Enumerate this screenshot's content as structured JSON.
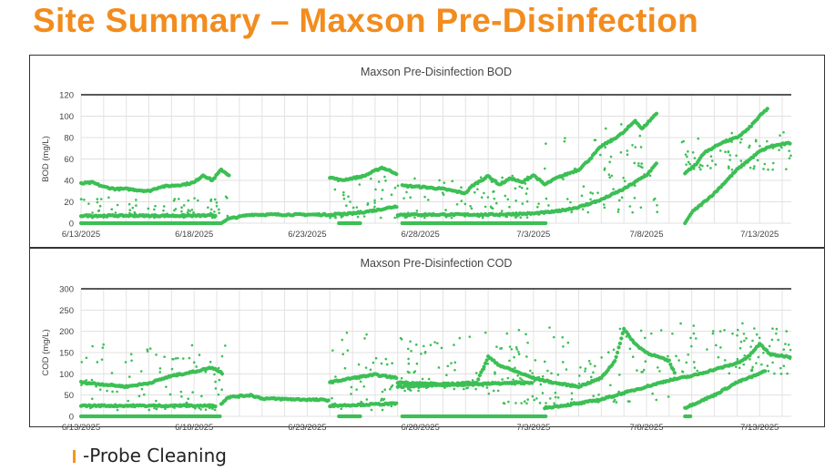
{
  "slide_title": "Site Summary – Maxson Pre-Disinfection",
  "legend_note": "-Probe Cleaning",
  "colors": {
    "series": "#3cbf55",
    "probe_marker": "#f7941d",
    "title": "#f28c1e"
  },
  "chart_data": [
    {
      "type": "scatter",
      "title": "Maxson Pre-Disinfection BOD",
      "xlabel": "",
      "ylabel": "BOD (mg/L)",
      "ylim": [
        0,
        120
      ],
      "yticks": [
        "0",
        "20",
        "40",
        "60",
        "80",
        "100",
        "120"
      ],
      "xticks": [
        "6/13/2025",
        "6/18/2025",
        "6/23/2025",
        "6/28/2025",
        "7/3/2025",
        "7/8/2025",
        "7/13/2025"
      ],
      "x_unit": "days since 6/13/2025",
      "xlim": [
        0,
        31.4
      ],
      "grid": true,
      "traces": [
        [
          [
            0,
            37
          ],
          [
            0.5,
            38
          ],
          [
            1,
            34
          ],
          [
            1.5,
            32
          ],
          [
            2,
            32
          ],
          [
            3,
            30
          ],
          [
            3.5,
            34
          ],
          [
            4.5,
            36
          ],
          [
            5,
            38
          ],
          [
            5.4,
            45
          ],
          [
            5.8,
            40
          ],
          [
            6.2,
            50
          ],
          [
            6.6,
            44
          ]
        ],
        [
          [
            6.2,
            0
          ],
          [
            6.5,
            4
          ],
          [
            7,
            6
          ],
          [
            7.5,
            8
          ],
          [
            11,
            8
          ]
        ],
        [
          [
            11,
            43
          ],
          [
            11.5,
            40
          ],
          [
            12.5,
            44
          ],
          [
            13.3,
            52
          ],
          [
            14,
            46
          ]
        ],
        [
          [
            14.2,
            35
          ],
          [
            15,
            34
          ],
          [
            16,
            32
          ],
          [
            17,
            28
          ],
          [
            17.3,
            35
          ],
          [
            18,
            44
          ],
          [
            18.5,
            36
          ],
          [
            19,
            42
          ],
          [
            19.5,
            38
          ],
          [
            20,
            45
          ],
          [
            20.5,
            36
          ],
          [
            21,
            42
          ],
          [
            22,
            50
          ],
          [
            22.5,
            60
          ],
          [
            23,
            72
          ],
          [
            23.5,
            78
          ],
          [
            24,
            85
          ],
          [
            24.5,
            96
          ],
          [
            24.8,
            88
          ],
          [
            25.5,
            104
          ]
        ],
        [
          [
            26.7,
            47
          ],
          [
            27.2,
            55
          ],
          [
            27.5,
            65
          ],
          [
            28.3,
            75
          ],
          [
            29,
            80
          ],
          [
            29.5,
            88
          ],
          [
            30,
            100
          ],
          [
            30.4,
            108
          ]
        ],
        [
          [
            26.7,
            0
          ],
          [
            27,
            10
          ],
          [
            28,
            28
          ],
          [
            29,
            50
          ],
          [
            30,
            67
          ],
          [
            30.5,
            72
          ],
          [
            31.4,
            75
          ]
        ],
        [
          [
            0,
            7
          ],
          [
            6,
            7
          ]
        ],
        [
          [
            11,
            8
          ],
          [
            12,
            9
          ],
          [
            13,
            12
          ],
          [
            14,
            16
          ]
        ],
        [
          [
            14,
            8
          ],
          [
            18,
            8
          ],
          [
            20,
            9
          ],
          [
            21,
            11
          ],
          [
            22,
            15
          ],
          [
            23,
            22
          ],
          [
            24,
            32
          ],
          [
            25,
            45
          ],
          [
            25.5,
            57
          ]
        ],
        [
          [
            0,
            0
          ],
          [
            6.2,
            0
          ]
        ],
        [
          [
            11.4,
            0
          ],
          [
            12.4,
            0
          ]
        ],
        [
          [
            14.2,
            0
          ],
          [
            20.6,
            0
          ]
        ]
      ],
      "scatter_bands": [
        [
          0,
          6.5,
          5,
          25
        ],
        [
          11,
          14,
          5,
          45
        ],
        [
          14,
          20,
          5,
          45
        ],
        [
          20,
          25.5,
          10,
          95
        ],
        [
          26.5,
          31.4,
          50,
          85
        ]
      ]
    },
    {
      "type": "scatter",
      "title": "Maxson Pre-Disinfection COD",
      "xlabel": "",
      "ylabel": "COD (mg/L)",
      "ylim": [
        0,
        300
      ],
      "yticks": [
        "0",
        "50",
        "100",
        "150",
        "200",
        "250",
        "300"
      ],
      "xticks": [
        "6/13/2025",
        "6/18/2025",
        "6/23/2025",
        "6/28/2025",
        "7/3/2025",
        "7/8/2025",
        "7/13/2025"
      ],
      "x_unit": "days since 6/13/2025",
      "xlim": [
        0,
        31.4
      ],
      "grid": true,
      "traces": [
        [
          [
            0,
            80
          ],
          [
            1,
            75
          ],
          [
            2,
            70
          ],
          [
            3,
            78
          ],
          [
            4,
            95
          ],
          [
            5,
            105
          ],
          [
            5.8,
            115
          ],
          [
            6.3,
            100
          ]
        ],
        [
          [
            6.2,
            30
          ],
          [
            6.5,
            45
          ],
          [
            7.5,
            50
          ],
          [
            8,
            42
          ],
          [
            11,
            38
          ]
        ],
        [
          [
            11,
            80
          ],
          [
            12,
            90
          ],
          [
            13,
            98
          ],
          [
            14,
            90
          ]
        ],
        [
          [
            14,
            80
          ],
          [
            16,
            75
          ],
          [
            17.5,
            80
          ],
          [
            18,
            140
          ],
          [
            18.5,
            120
          ],
          [
            19,
            110
          ],
          [
            20,
            90
          ],
          [
            21,
            78
          ],
          [
            22,
            70
          ],
          [
            23,
            90
          ],
          [
            23.6,
            130
          ],
          [
            24,
            205
          ],
          [
            24.5,
            170
          ],
          [
            25,
            150
          ],
          [
            26,
            130
          ],
          [
            26.3,
            95
          ]
        ],
        [
          [
            20.5,
            20
          ],
          [
            22,
            30
          ],
          [
            23,
            40
          ],
          [
            24,
            55
          ],
          [
            25,
            70
          ],
          [
            26,
            85
          ],
          [
            27,
            95
          ],
          [
            28,
            110
          ],
          [
            29,
            125
          ],
          [
            29.5,
            140
          ],
          [
            30,
            170
          ],
          [
            30.5,
            145
          ],
          [
            31.4,
            140
          ]
        ],
        [
          [
            26.7,
            20
          ],
          [
            28,
            50
          ],
          [
            29,
            80
          ],
          [
            30,
            100
          ],
          [
            30.3,
            110
          ]
        ],
        [
          [
            0,
            25
          ],
          [
            6,
            25
          ]
        ],
        [
          [
            11,
            25
          ],
          [
            14,
            30
          ]
        ],
        [
          [
            14,
            70
          ],
          [
            20,
            80
          ]
        ],
        [
          [
            0,
            0
          ],
          [
            6.2,
            0
          ]
        ],
        [
          [
            11.4,
            0
          ],
          [
            12.4,
            0
          ]
        ],
        [
          [
            14.2,
            0
          ],
          [
            20.6,
            0
          ]
        ],
        [
          [
            26.7,
            0
          ],
          [
            27,
            0
          ]
        ]
      ],
      "scatter_bands": [
        [
          0,
          6.5,
          15,
          170
        ],
        [
          11,
          14,
          15,
          200
        ],
        [
          14,
          20,
          60,
          200
        ],
        [
          18,
          26,
          30,
          210
        ],
        [
          26,
          31.4,
          100,
          220
        ]
      ]
    }
  ]
}
